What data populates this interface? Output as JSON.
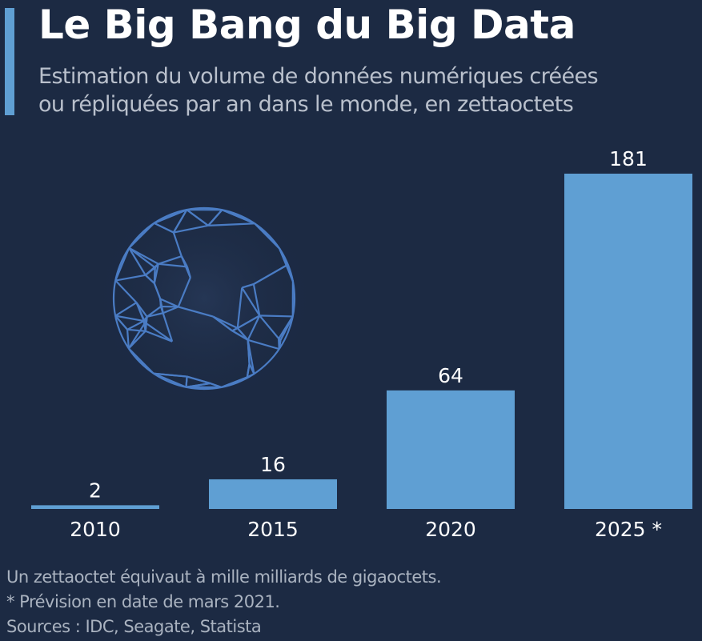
{
  "header": {
    "title": "Le Big Bang du Big Data",
    "subtitle_line1": "Estimation du volume de données numériques créées",
    "subtitle_line2": "ou répliquées par an dans le monde, en zettaoctets"
  },
  "illustration": {
    "name": "wireframe-globe",
    "color": "#4a7cc4"
  },
  "colors": {
    "background": "#1c2a43",
    "bar": "#5f9fd3",
    "label": "#ffffff",
    "footer_text": "#aab3c0"
  },
  "chart_data": {
    "type": "bar",
    "title": "Le Big Bang du Big Data",
    "subtitle": "Estimation du volume de données numériques créées ou répliquées par an dans le monde, en zettaoctets",
    "categories": [
      "2010",
      "2015",
      "2020",
      "2025 *"
    ],
    "values": [
      2,
      16,
      64,
      181
    ],
    "data_labels": [
      "2",
      "16",
      "64",
      "181"
    ],
    "xlabel": "",
    "ylabel": "zettaoctets",
    "ylim": [
      0,
      181
    ],
    "grid": false,
    "legend": "none"
  },
  "footer": {
    "note": "Un zettaoctet équivaut à mille milliards de gigaoctets.",
    "forecast_note": "* Prévision en date de mars 2021.",
    "sources": "Sources : IDC, Seagate, Statista"
  }
}
